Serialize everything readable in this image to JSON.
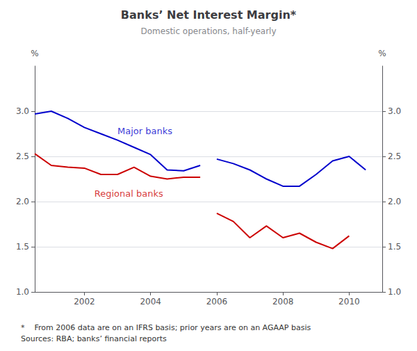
{
  "chart_data": {
    "type": "line",
    "title": "Banks’ Net Interest Margin*",
    "subtitle": "Domestic operations, half-yearly",
    "ylabel": "%",
    "y2label": "%",
    "footnote": "*    From 2006 data are on an IFRS basis; prior years are on an AGAAP basis\nSources: RBA; banks’ financial reports",
    "xlim": [
      2000.5,
      2011.0
    ],
    "xticks": [
      2002,
      2004,
      2006,
      2008,
      2010
    ],
    "ylim": [
      1.0,
      3.5
    ],
    "yticks": [
      {
        "value": 1.0,
        "label": "1.0"
      },
      {
        "value": 1.5,
        "label": "1.5"
      },
      {
        "value": 2.0,
        "label": "2.0"
      },
      {
        "value": 2.5,
        "label": "2.5"
      },
      {
        "value": 3.0,
        "label": "3.0"
      }
    ],
    "y2lim": [
      1.0,
      3.5
    ],
    "y2ticks": [
      {
        "value": 1.0,
        "label": "1.0"
      },
      {
        "value": 1.5,
        "label": "1.5"
      },
      {
        "value": 2.0,
        "label": "2.0"
      },
      {
        "value": 2.5,
        "label": "2.5"
      },
      {
        "value": 3.0,
        "label": "3.0"
      }
    ],
    "grid": true,
    "series": [
      {
        "name": "Major banks",
        "color": "#0000cc",
        "x": [
          2000.5,
          2001.0,
          2001.5,
          2002.0,
          2002.5,
          2003.0,
          2003.5,
          2004.0,
          2004.5,
          2005.0,
          2005.5,
          null,
          2006.0,
          2006.5,
          2007.0,
          2007.5,
          2008.0,
          2008.5,
          2009.0,
          2009.5,
          2010.0,
          2010.5
        ],
        "values": [
          2.97,
          3.0,
          2.92,
          2.82,
          2.75,
          2.68,
          2.6,
          2.52,
          2.35,
          2.34,
          2.4,
          null,
          2.47,
          2.42,
          2.35,
          2.25,
          2.17,
          2.17,
          2.3,
          2.45,
          2.5,
          2.35
        ]
      },
      {
        "name": "Regional banks",
        "color": "#cc0000",
        "x": [
          2000.5,
          2001.0,
          2001.5,
          2002.0,
          2002.5,
          2003.0,
          2003.5,
          2004.0,
          2004.5,
          2005.0,
          2005.5,
          null,
          2006.0,
          2006.5,
          2007.0,
          2007.5,
          2008.0,
          2008.5,
          2009.0,
          2009.5,
          2010.0
        ],
        "values": [
          2.53,
          2.4,
          2.38,
          2.37,
          2.3,
          2.3,
          2.38,
          2.28,
          2.25,
          2.27,
          2.27,
          null,
          1.87,
          1.78,
          1.6,
          1.73,
          1.6,
          1.65,
          1.55,
          1.48,
          1.62
        ]
      }
    ],
    "annotations": [
      {
        "text": "Major banks",
        "x": 2003.0,
        "y": 2.73,
        "color": "#0000cc"
      },
      {
        "text": "Regional banks",
        "x": 2002.3,
        "y": 2.14,
        "color": "#cc0000"
      }
    ]
  }
}
